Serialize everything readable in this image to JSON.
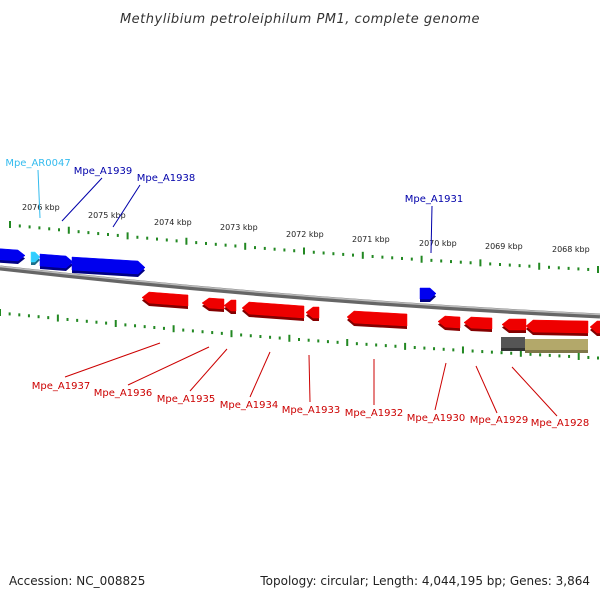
{
  "title": "Methylibium petroleiphilum PM1, complete genome",
  "footer": {
    "accession": "Accession: NC_008825",
    "summary": "Topology: circular; Length: 4,044,195 bp; Genes: 3,864"
  },
  "colors": {
    "forward_gene": "#0000ee",
    "reverse_gene": "#ee0000",
    "rna_gene": "#33ccff",
    "backbone": "#888888",
    "tick": "#228822",
    "forward_label": "#0000aa",
    "reverse_label": "#cc0000",
    "rna_label": "#33bbee"
  },
  "kbp_labels": [
    "2076 kbp",
    "2075 kbp",
    "2074 kbp",
    "2073 kbp",
    "2072 kbp",
    "2071 kbp",
    "2070 kbp",
    "2069 kbp",
    "2068 kbp"
  ],
  "forward_gene_labels": [
    "Mpe_A1939",
    "Mpe_A1938",
    "Mpe_A1931"
  ],
  "rna_gene_labels": [
    "Mpe_AR0047"
  ],
  "reverse_gene_labels": [
    "Mpe_A1937",
    "Mpe_A1936",
    "Mpe_A1935",
    "Mpe_A1934",
    "Mpe_A1933",
    "Mpe_A1932",
    "Mpe_A1930",
    "Mpe_A1929",
    "Mpe_A1928"
  ]
}
